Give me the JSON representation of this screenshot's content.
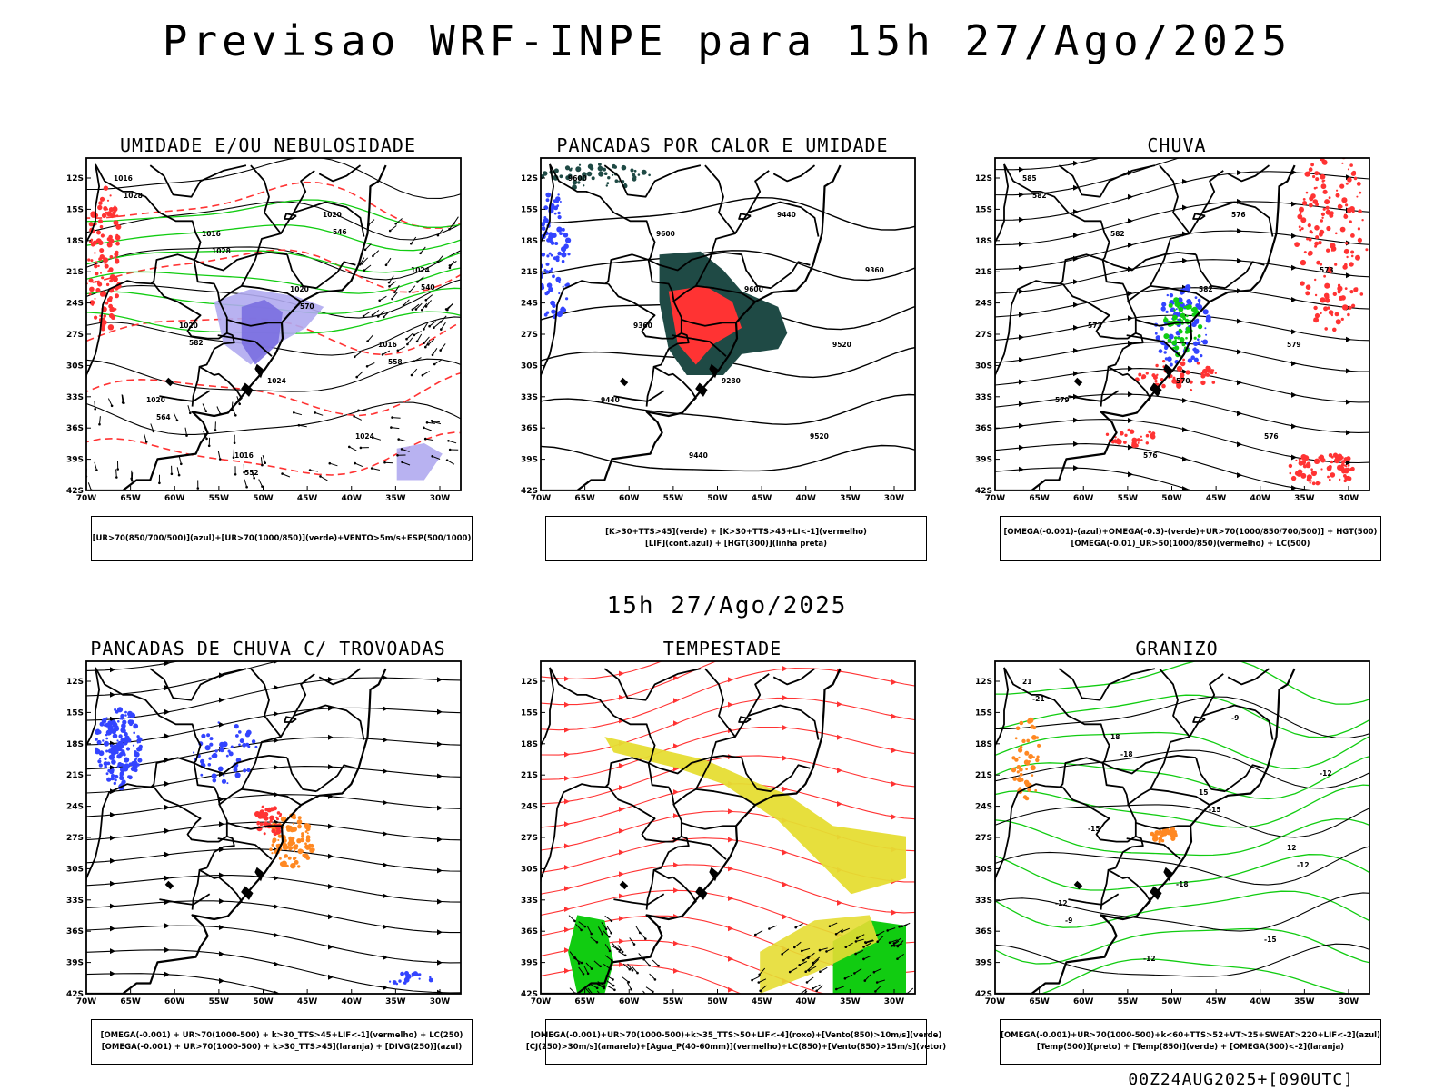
{
  "header": {
    "title": "Previsao WRF-INPE  para 15h 27/Ago/2025"
  },
  "middle": {
    "title": "15h 27/Ago/2025"
  },
  "footer": {
    "run": "00Z24AUG2025+[090UTC]"
  },
  "axes": {
    "lat_ticks": [
      "12S",
      "15S",
      "18S",
      "21S",
      "24S",
      "27S",
      "30S",
      "33S",
      "36S",
      "39S",
      "42S"
    ],
    "lon_ticks": [
      "70W",
      "65W",
      "60W",
      "55W",
      "50W",
      "45W",
      "40W",
      "35W",
      "30W"
    ]
  },
  "colors": {
    "azul": "#3344ff",
    "verde": "#11cc11",
    "vermelho": "#ff3333",
    "laranja": "#ff8822",
    "amarelo": "#e6dd33",
    "roxo": "#7a6ee0",
    "lilas": "#b0aaf0",
    "verde_escuro": "#1f4a45"
  },
  "panels": [
    {
      "id": "umidade",
      "title": "UMIDADE E/OU NEBULOSIDADE",
      "legend": [
        "[UR>70(850/700/500)](azul)+[UR>70(1000/850)](verde)+VENTO>5m/s+ESP(500/1000)"
      ],
      "labels": [
        "1016",
        "1016",
        "1020",
        "1016",
        "1020",
        "1016",
        "1020",
        "1024",
        "1020",
        "1024",
        "1024",
        "1028",
        "1028",
        "570",
        "558",
        "564",
        "552",
        "546",
        "540",
        "582"
      ]
    },
    {
      "id": "pancadas_calor",
      "title": "PANCADAS POR CALOR E UMIDADE",
      "legend": [
        "[K>30+TTS>45](verde)  +  [K>30+TTS>45+LI<-1](vermelho)",
        "[LIF](cont.azul)  +  [HGT(300)](linha preta)"
      ],
      "labels": [
        "9600",
        "9600",
        "9600",
        "9520",
        "9440",
        "9440",
        "9440",
        "9360",
        "9360",
        "9280",
        "9520"
      ]
    },
    {
      "id": "chuva",
      "title": "CHUVA",
      "legend": [
        "[OMEGA(-0.001)-(azul)+OMEGA(-0.3)-(verde)+UR>70(1000/850/700/500)]  +  HGT(500)",
        "[OMEGA(-0.01)_UR>50(1000/850)(vermelho)  +  LC(500)"
      ],
      "labels": [
        "585",
        "582",
        "582",
        "579",
        "579",
        "576",
        "576",
        "573",
        "573",
        "570",
        "576",
        "582"
      ]
    },
    {
      "id": "trovoadas",
      "title": "PANCADAS DE CHUVA C/ TROVOADAS",
      "legend": [
        "[OMEGA(-0.001)  +  UR>70(1000-500)  +  k>30_TTS>45+LIF<-1](vermelho)  +  LC(250)",
        "[OMEGA(-0.001)  +  UR>70(1000-500)  +  k>30_TTS>45](laranja)  +  [DIVG(250)](azul)"
      ],
      "labels": []
    },
    {
      "id": "tempestade",
      "title": "TEMPESTADE",
      "legend": [
        "[OMEGA(-0.001)+UR>70(1000-500)+k>35_TTS>50+LIF<-4](roxo)+[Vento(850)>10m/s](verde)",
        "[CJ(250)>30m/s](amarelo)+[Agua_P(40-60mm)](vermelho)+LC(850)+[Vento(850)>15m/s](vetor)"
      ],
      "labels": []
    },
    {
      "id": "granizo",
      "title": "GRANIZO",
      "legend": [
        "[OMEGA(-0.001)+UR>70(1000-500)+k<60+TTS>52+VT>25+SWEAT>220+LIF<-2](azul)",
        "[Temp(500)](preto)  +  [Temp(850)](verde)  +  [OMEGA(500)<-2](laranja)"
      ],
      "labels": [
        "21",
        "18",
        "15",
        "12",
        "-12",
        "-12",
        "-9",
        "-12",
        "-15",
        "-18",
        "-15",
        "-21",
        "-18",
        "-15",
        "-12",
        "-9"
      ]
    }
  ]
}
